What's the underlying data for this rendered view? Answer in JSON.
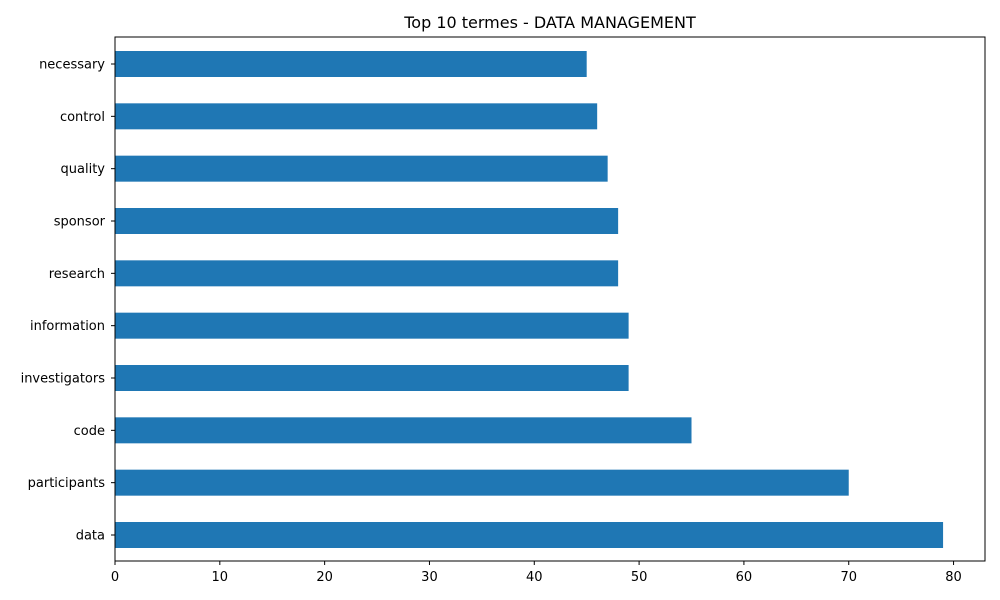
{
  "chart_data": {
    "type": "bar",
    "orientation": "horizontal",
    "title": "Top 10 termes - DATA MANAGEMENT",
    "xlabel": "",
    "ylabel": "",
    "categories": [
      "data",
      "participants",
      "code",
      "investigators",
      "information",
      "research",
      "sponsor",
      "quality",
      "control",
      "necessary"
    ],
    "values": [
      79,
      70,
      55,
      49,
      49,
      48,
      48,
      47,
      46,
      45
    ],
    "xlim": [
      0,
      83
    ],
    "xticks": [
      0,
      10,
      20,
      30,
      40,
      50,
      60,
      70,
      80
    ],
    "grid": false,
    "legend": "none",
    "bar_color": "#1f77b4"
  }
}
